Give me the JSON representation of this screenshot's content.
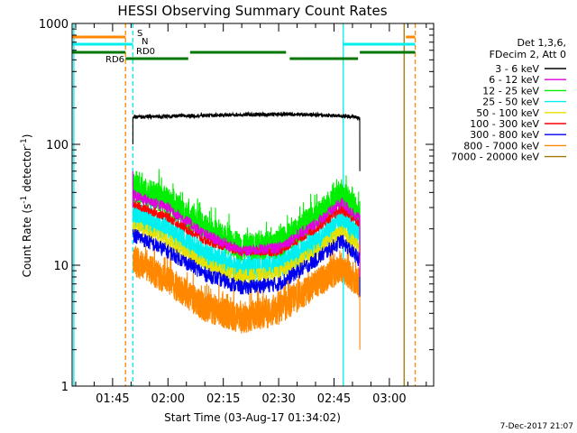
{
  "chart_data": {
    "type": "line",
    "title": "HESSI Observing Summary Count Rates",
    "xlabel": "Start Time (03-Aug-17 01:34:02)",
    "ylabel": "Count Rate (s⁻¹ detector⁻¹)",
    "ylabel_parts": [
      "Count Rate (s",
      "-1",
      " detector",
      "-1",
      ")"
    ],
    "yscale": "log",
    "xlim": [
      "01:34:02",
      "03:12:00"
    ],
    "ylim": [
      1,
      1000
    ],
    "x_ticks": [
      {
        "t": "01:45",
        "label": "01:45"
      },
      {
        "t": "02:00",
        "label": "02:00"
      },
      {
        "t": "02:15",
        "label": "02:15"
      },
      {
        "t": "02:30",
        "label": "02:30"
      },
      {
        "t": "02:45",
        "label": "02:45"
      },
      {
        "t": "03:00",
        "label": "03:00"
      }
    ],
    "y_ticks": [
      {
        "v": 1,
        "label": "1"
      },
      {
        "v": 10,
        "label": "10"
      },
      {
        "v": 100,
        "label": "100"
      },
      {
        "v": 1000,
        "label": "1000"
      }
    ],
    "legend_placement": "right",
    "legend_header": [
      "Det 1,3,6,",
      "FDecim 2, Att 0"
    ],
    "data_window": [
      "01:50:30",
      "02:52:00"
    ],
    "spike_at_start": {
      "3 - 6 keV": [
        100,
        165
      ],
      "6 - 12 keV": [
        30,
        60
      ]
    },
    "series": [
      {
        "name": "3 - 6 keV",
        "color": "#000000",
        "key_times": [
          "01:50:30",
          "02:05:00",
          "02:20:00",
          "02:35:00",
          "02:50:00",
          "02:52:00"
        ],
        "key_values": [
          168,
          172,
          176,
          178,
          170,
          165
        ],
        "noise": 0.02,
        "tail": 60
      },
      {
        "name": "6 - 12 keV",
        "color": "#e000e0",
        "key_times": [
          "01:50:30",
          "02:00:00",
          "02:10:00",
          "02:20:00",
          "02:30:00",
          "02:40:00",
          "02:47:00",
          "02:52:00"
        ],
        "key_values": [
          38,
          30,
          18,
          13,
          14,
          22,
          33,
          24
        ],
        "noise": 0.06,
        "tail": 8
      },
      {
        "name": "12 - 25 keV",
        "color": "#00ee00",
        "key_times": [
          "01:50:30",
          "02:00:00",
          "02:10:00",
          "02:20:00",
          "02:30:00",
          "02:40:00",
          "02:47:00",
          "02:52:00"
        ],
        "key_values": [
          44,
          34,
          20,
          14,
          15,
          25,
          38,
          26
        ],
        "noise": 0.15,
        "tail": 9
      },
      {
        "name": "25 - 50 keV",
        "color": "#00f0f0",
        "key_times": [
          "01:50:30",
          "02:00:00",
          "02:10:00",
          "02:20:00",
          "02:30:00",
          "02:40:00",
          "02:47:00",
          "02:52:00"
        ],
        "key_values": [
          26,
          20,
          12,
          9,
          10,
          15,
          24,
          17
        ],
        "noise": 0.14,
        "tail": 6
      },
      {
        "name": "50 - 100 keV",
        "color": "#e8e000",
        "key_times": [
          "01:50:30",
          "02:00:00",
          "02:10:00",
          "02:20:00",
          "02:30:00",
          "02:40:00",
          "02:47:00",
          "02:52:00"
        ],
        "key_values": [
          21,
          16,
          10,
          8,
          8.5,
          13,
          19,
          14
        ],
        "noise": 0.08,
        "tail": 7
      },
      {
        "name": "100 - 300 keV",
        "color": "#ff0000",
        "key_times": [
          "01:50:30",
          "02:00:00",
          "02:10:00",
          "02:20:00",
          "02:30:00",
          "02:40:00",
          "02:47:00",
          "02:52:00"
        ],
        "key_values": [
          32,
          25,
          16,
          13,
          13,
          20,
          29,
          22
        ],
        "noise": 0.05,
        "tail": 12
      },
      {
        "name": "300 - 800 keV",
        "color": "#0000ee",
        "key_times": [
          "01:50:30",
          "02:00:00",
          "02:10:00",
          "02:20:00",
          "02:30:00",
          "02:40:00",
          "02:47:00",
          "02:52:00"
        ],
        "key_values": [
          18,
          13,
          8.5,
          6.5,
          7,
          11,
          16,
          11
        ],
        "noise": 0.08,
        "tail": 5.5
      },
      {
        "name": "800 - 7000 keV",
        "color": "#ff8800",
        "key_times": [
          "01:50:30",
          "02:00:00",
          "02:10:00",
          "02:20:00",
          "02:30:00",
          "02:40:00",
          "02:47:00",
          "02:52:00"
        ],
        "key_values": [
          11,
          7.5,
          4.5,
          3.6,
          4.2,
          7,
          9.5,
          7
        ],
        "noise": 0.16,
        "tail": 2
      },
      {
        "name": "7000 - 20000 keV",
        "color": "#a07800",
        "key_times": [],
        "key_values": [],
        "noise": 0,
        "tail": null
      }
    ],
    "state_flags": [
      {
        "label": "S",
        "color": "#ff8800",
        "label_color": "#ff8800",
        "segments": [
          [
            "01:34:02",
            "01:48:30"
          ],
          [
            "03:04:30",
            "03:07:00"
          ]
        ]
      },
      {
        "label": "N",
        "color": "#00f0f0",
        "label_color": "#00c0c0",
        "segments": [
          [
            "01:34:02",
            "01:50:30"
          ],
          [
            "02:47:30",
            "03:07:00"
          ]
        ]
      },
      {
        "label": "RD0",
        "color": "#007700",
        "label_color": "#007700",
        "segments": [
          [
            "01:34:02",
            "01:48:30"
          ],
          [
            "02:06:00",
            "02:32:00"
          ],
          [
            "02:52:00",
            "03:07:00"
          ]
        ]
      },
      {
        "label": "RD6",
        "color": "#007700",
        "label_color": "#007700",
        "segments": [
          [
            "01:48:30",
            "02:05:30"
          ],
          [
            "02:33:00",
            "02:51:30"
          ]
        ]
      }
    ],
    "vertical_lines": [
      {
        "t": "01:34:30",
        "color": "#00f0f0",
        "style": "solid"
      },
      {
        "t": "01:48:30",
        "color": "#ff8800",
        "style": "dashed"
      },
      {
        "t": "01:50:30",
        "color": "#00f0f0",
        "style": "dashed"
      },
      {
        "t": "02:47:30",
        "color": "#00f0f0",
        "style": "solid"
      },
      {
        "t": "03:04:00",
        "color": "#a07800",
        "style": "solid"
      },
      {
        "t": "03:07:00",
        "color": "#ff8800",
        "style": "dashed"
      }
    ]
  },
  "footer": {
    "date_stamp": "7-Dec-2017 21:07"
  }
}
